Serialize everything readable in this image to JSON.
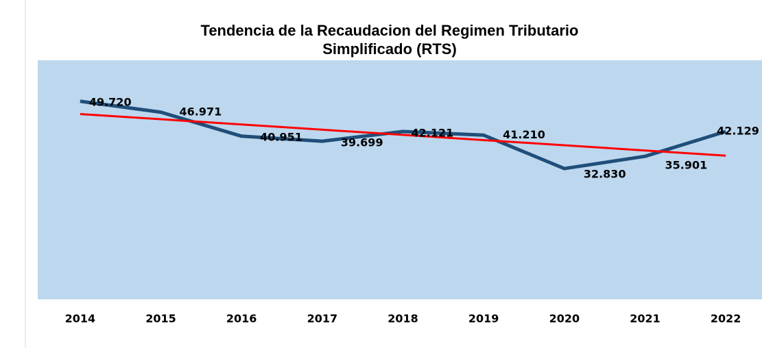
{
  "chart_data": {
    "type": "line",
    "title": "Tendencia de la Recaudacion del Regimen Tributario Simplificado  (RTS)",
    "categories": [
      "2014",
      "2015",
      "2016",
      "2017",
      "2018",
      "2019",
      "2020",
      "2021",
      "2022"
    ],
    "series": [
      {
        "color": "#1f4e79",
        "values": [
          49720,
          46971,
          40951,
          39699,
          42121,
          41210,
          32830,
          35901,
          42129
        ],
        "value_labels": [
          "49.720",
          "46.971",
          "40.951",
          "39.699",
          "42.121",
          "41.210",
          "32.830",
          "35.901",
          "42.129"
        ]
      }
    ],
    "trendline": {
      "type": "linear",
      "color": "#ff0000"
    },
    "ylim": [
      0,
      60000
    ],
    "plot_background": "#bdd7ee"
  }
}
